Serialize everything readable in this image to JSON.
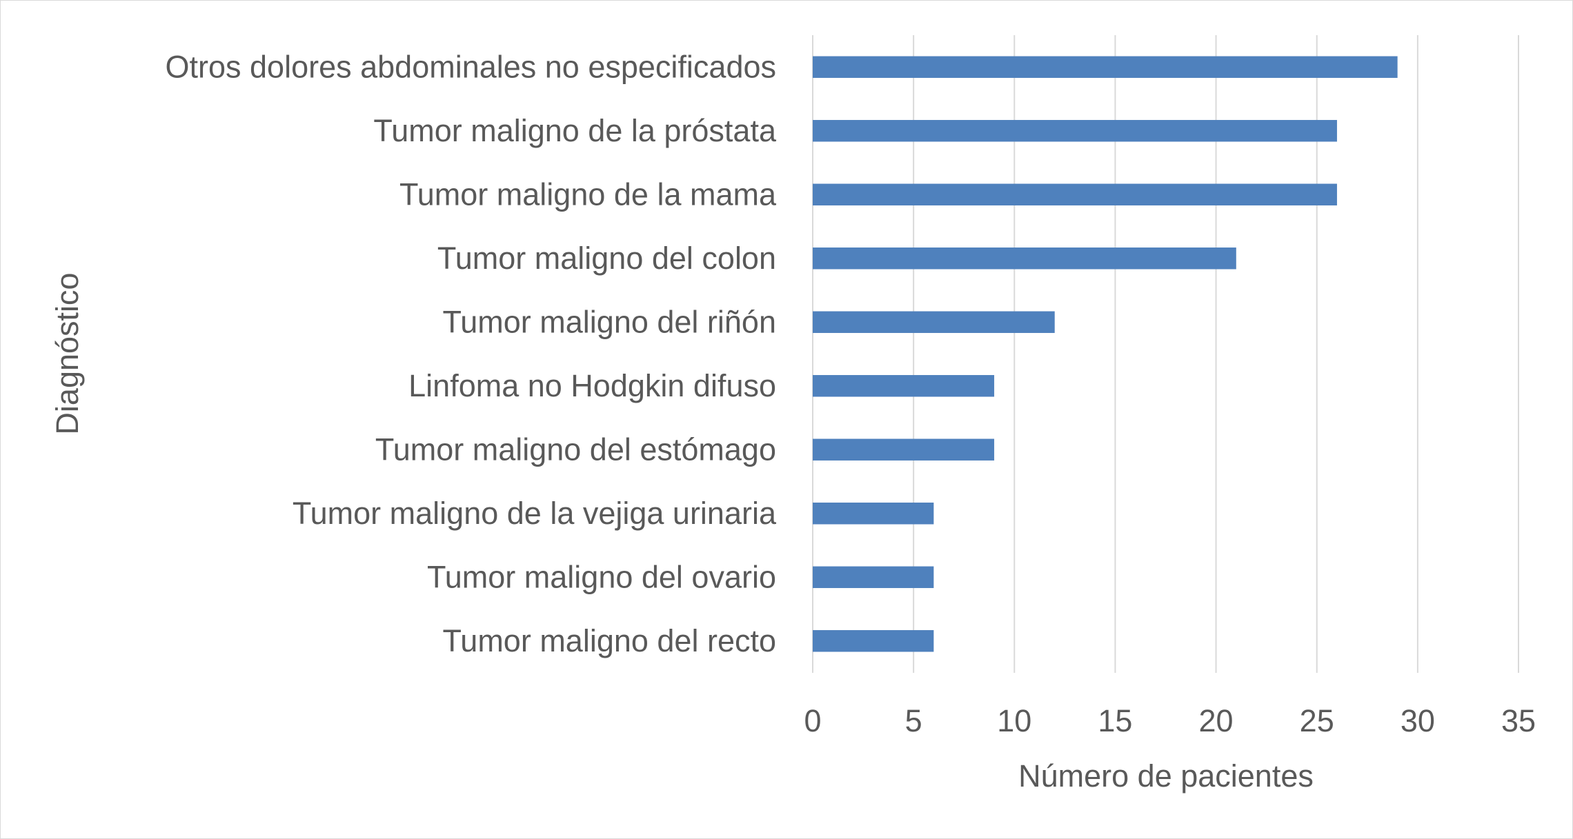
{
  "chart_data": {
    "type": "bar",
    "orientation": "horizontal",
    "categories": [
      "Otros dolores abdominales no especificados",
      "Tumor maligno de la próstata",
      "Tumor maligno de la mama",
      "Tumor maligno del colon",
      "Tumor maligno del riñón",
      "Linfoma no Hodgkin difuso",
      "Tumor maligno del estómago",
      "Tumor maligno de la vejiga urinaria",
      "Tumor maligno del ovario",
      "Tumor maligno del recto"
    ],
    "values": [
      29,
      26,
      26,
      21,
      12,
      9,
      9,
      6,
      6,
      6
    ],
    "xlabel": "Número de pacientes",
    "ylabel": "Diagnóstico",
    "xlim": [
      0,
      35
    ],
    "xticks": [
      "0",
      "5",
      "10",
      "15",
      "20",
      "25",
      "30",
      "35"
    ],
    "grid": "vertical",
    "bar_color": "#4f81bd"
  }
}
